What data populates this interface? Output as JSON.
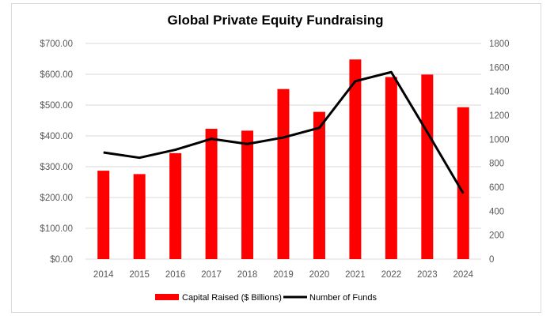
{
  "chart_data": {
    "type": "bar+line",
    "title": "Global Private Equity Fundraising",
    "categories": [
      "2014",
      "2015",
      "2016",
      "2017",
      "2018",
      "2019",
      "2020",
      "2021",
      "2022",
      "2023",
      "2024"
    ],
    "series": [
      {
        "name": "Capital Raised ($ Billions)",
        "type": "bar",
        "axis": "left",
        "color": "#ff0000",
        "values": [
          287,
          276,
          344,
          423,
          417,
          552,
          478,
          648,
          591,
          599,
          493
        ]
      },
      {
        "name": "Number of Funds",
        "type": "line",
        "axis": "right",
        "color": "#000000",
        "values": [
          890,
          846,
          913,
          1004,
          961,
          1015,
          1096,
          1485,
          1561,
          1060,
          550
        ]
      }
    ],
    "y_left": {
      "range": [
        0,
        700
      ],
      "step": 100,
      "ticks": [
        "$0.00",
        "$100.00",
        "$200.00",
        "$300.00",
        "$400.00",
        "$500.00",
        "$600.00",
        "$700.00"
      ]
    },
    "y_right": {
      "range": [
        0,
        1800
      ],
      "step": 200,
      "ticks": [
        "0",
        "200",
        "400",
        "600",
        "800",
        "1000",
        "1200",
        "1400",
        "1600",
        "1800"
      ]
    },
    "grid": true,
    "legend": "bottom"
  }
}
